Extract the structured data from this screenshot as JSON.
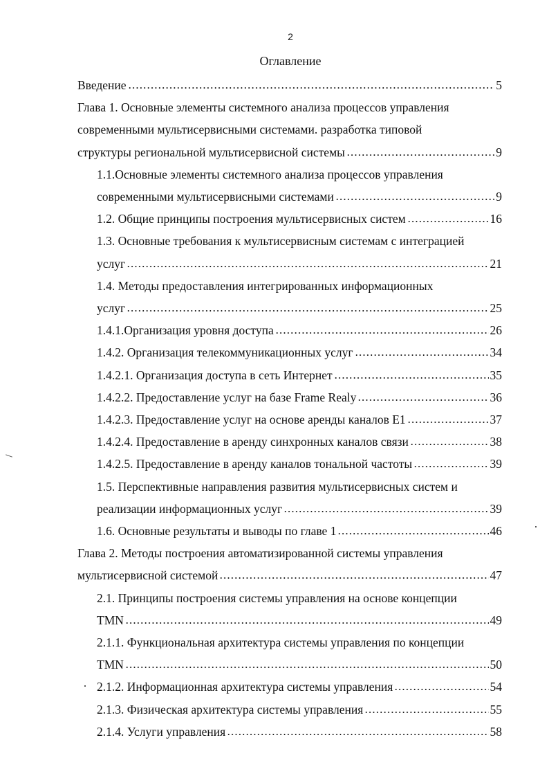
{
  "page_number": "2",
  "title": "Оглавление",
  "entries": [
    {
      "level": "chapter",
      "lines": [
        "Введение"
      ],
      "page": "5"
    },
    {
      "level": "chapter",
      "lines": [
        "Глава 1.  Основные элементы системного анализа процессов управления",
        "современными  мультисервисными системами. разработка типовой",
        "структуры региональной мультисервисной системы"
      ],
      "page": "9"
    },
    {
      "level": "section",
      "lines": [
        "1.1.Основные элементы системного анализа процессов управления",
        "современными мультисервисными системами"
      ],
      "page": "9"
    },
    {
      "level": "section",
      "lines": [
        "1.2. Общие принципы построения мультисервисных систем"
      ],
      "page": "16"
    },
    {
      "level": "section",
      "lines": [
        "1.3. Основные требования к мультисервисным системам  с интеграцией",
        "услуг"
      ],
      "page": "21"
    },
    {
      "level": "section",
      "lines": [
        "1.4. Методы предоставления  интегрированных информационных",
        "услуг"
      ],
      "page": "25"
    },
    {
      "level": "section",
      "lines": [
        "1.4.1.Организация уровня доступа"
      ],
      "page": "26"
    },
    {
      "level": "section",
      "lines": [
        "1.4.2. Организация телекоммуникационных услуг"
      ],
      "page": "34"
    },
    {
      "level": "section",
      "lines": [
        "1.4.2.1. Организация доступа в сеть Интернет"
      ],
      "page": "35"
    },
    {
      "level": "section",
      "lines": [
        "1.4.2.2. Предоставление услуг на базе Frame Realy"
      ],
      "page": "36"
    },
    {
      "level": "section",
      "lines": [
        "1.4.2.3. Предоставление услуг на основе аренды каналов Е1"
      ],
      "page": "37"
    },
    {
      "level": "section",
      "lines": [
        "1.4.2.4. Предоставление в аренду синхронных каналов связи"
      ],
      "page": "38"
    },
    {
      "level": "section",
      "lines": [
        "1.4.2.5. Предоставление в аренду каналов тональной частоты"
      ],
      "page": "39"
    },
    {
      "level": "section",
      "lines": [
        "1.5. Перспективные направления развития мультисервисных систем и",
        "реализации информационных услуг"
      ],
      "page": "39"
    },
    {
      "level": "section",
      "lines": [
        "1.6. Основные результаты и выводы по главе 1"
      ],
      "page": "46"
    },
    {
      "level": "chapter",
      "lines": [
        "Глава 2. Методы построения  автоматизированной системы управления",
        "мультисервисной системой"
      ],
      "page": "47"
    },
    {
      "level": "section",
      "lines": [
        "2.1. Принципы построения системы управления  на основе концепции",
        "TMN"
      ],
      "page": "49"
    },
    {
      "level": "section",
      "lines": [
        "2.1.1. Функциональная архитектура системы управления  по концепции",
        "TMN "
      ],
      "page": "50"
    },
    {
      "level": "section",
      "lines": [
        "2.1.2. Информационная архитектура системы управления"
      ],
      "page": "54"
    },
    {
      "level": "section",
      "lines": [
        "2.1.3. Физическая архитектура системы управления"
      ],
      "page": "55"
    },
    {
      "level": "section",
      "lines": [
        "2.1.4. Услуги управления"
      ],
      "page": "58"
    }
  ]
}
